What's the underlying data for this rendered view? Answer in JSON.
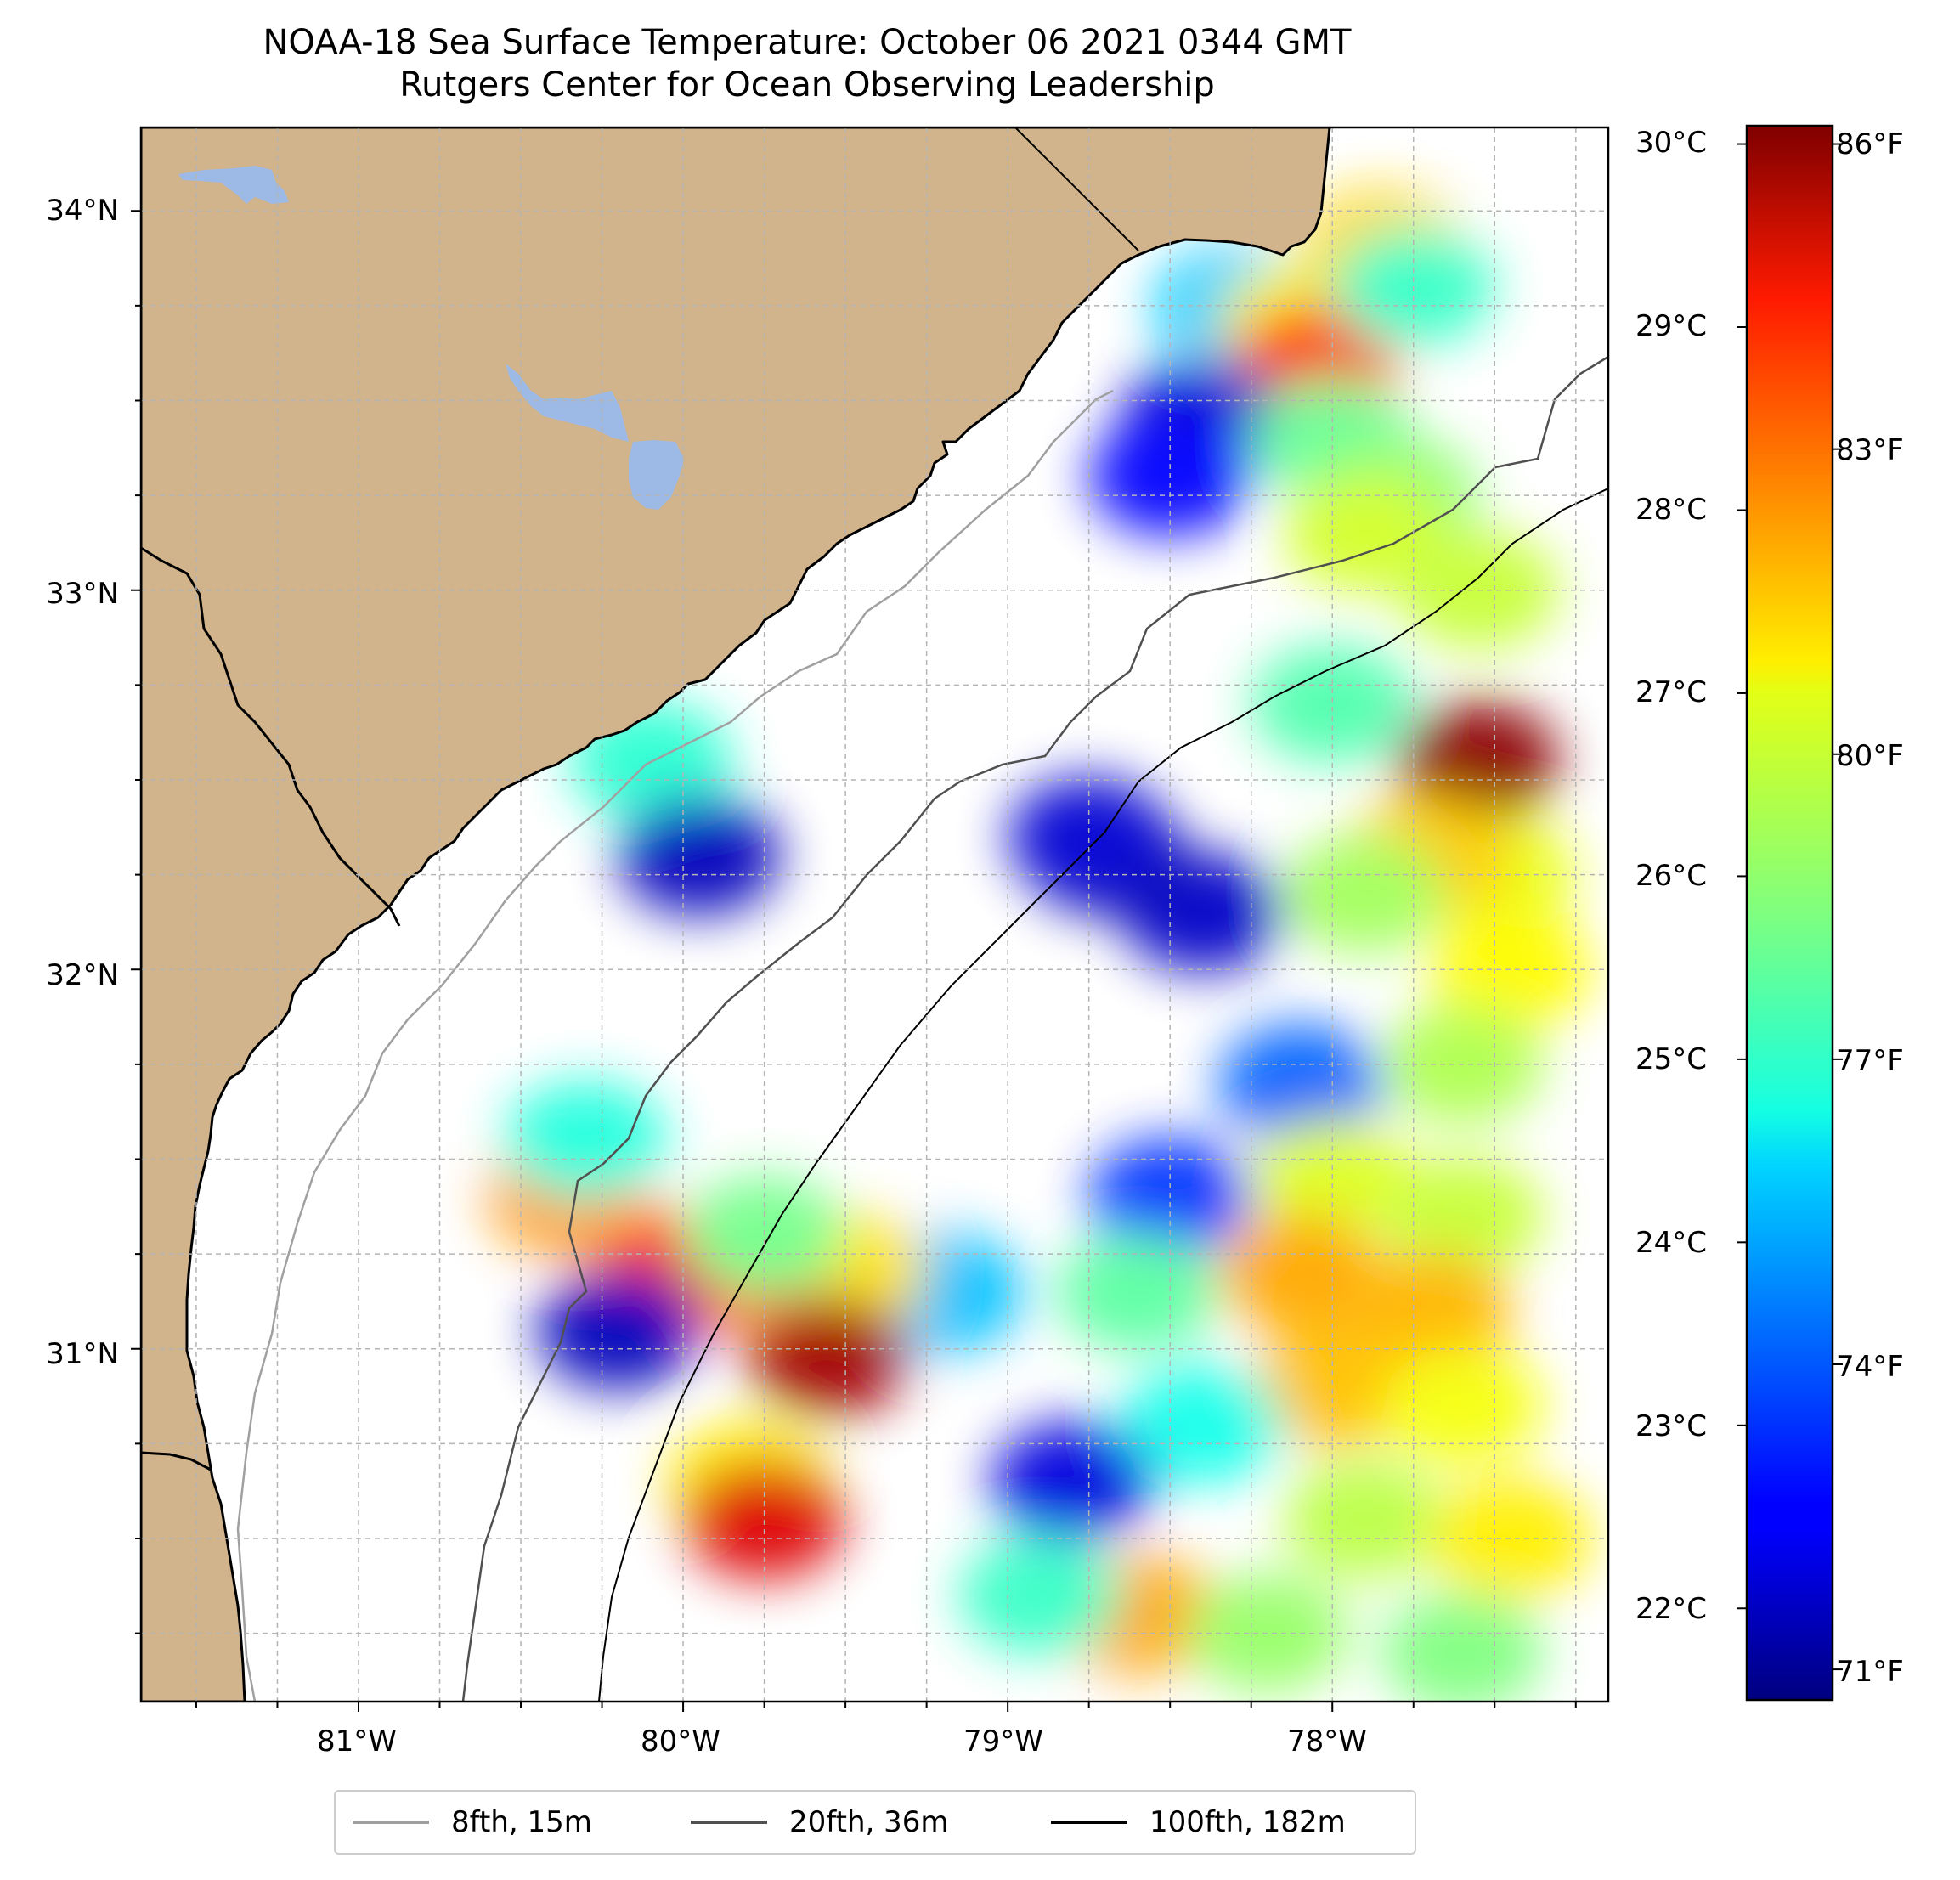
{
  "title": "NOAA-18 Sea Surface Temperature: October 06 2021 0344 GMT",
  "subtitle": "Rutgers Center for Ocean Observing Leadership",
  "map": {
    "lon_range": [
      -81.67,
      -77.15
    ],
    "lat_range": [
      30.07,
      34.22
    ],
    "lat_ticks": [
      {
        "value": 34,
        "label": "34°N"
      },
      {
        "value": 33,
        "label": "33°N"
      },
      {
        "value": 32,
        "label": "32°N"
      },
      {
        "value": 31,
        "label": "31°N"
      }
    ],
    "lon_ticks": [
      {
        "value": -81,
        "label": "81°W"
      },
      {
        "value": -80,
        "label": "80°W"
      },
      {
        "value": -79,
        "label": "79°W"
      },
      {
        "value": -78,
        "label": "78°W"
      }
    ],
    "grid": true,
    "land_color": "#D2B48C",
    "water_body_color": "#9DB9E5"
  },
  "colorbar": {
    "colormap": "jet",
    "range_c": [
      21.5,
      30.1
    ],
    "celsius_ticks": [
      {
        "value": 30,
        "label": "30°C"
      },
      {
        "value": 29,
        "label": "29°C"
      },
      {
        "value": 28,
        "label": "28°C"
      },
      {
        "value": 27,
        "label": "27°C"
      },
      {
        "value": 26,
        "label": "26°C"
      },
      {
        "value": 25,
        "label": "25°C"
      },
      {
        "value": 24,
        "label": "24°C"
      },
      {
        "value": 23,
        "label": "23°C"
      },
      {
        "value": 22,
        "label": "22°C"
      }
    ],
    "fahrenheit_ticks": [
      {
        "value": 86,
        "label": "86°F"
      },
      {
        "value": 83,
        "label": "83°F"
      },
      {
        "value": 80,
        "label": "80°F"
      },
      {
        "value": 77,
        "label": "77°F"
      },
      {
        "value": 74,
        "label": "74°F"
      },
      {
        "value": 71,
        "label": "71°F"
      }
    ]
  },
  "legend": {
    "items": [
      {
        "label": "8fth, 15m",
        "color": "#A0A0A0"
      },
      {
        "label": "20fth, 36m",
        "color": "#505050"
      },
      {
        "label": "100fth, 182m",
        "color": "#000000"
      }
    ]
  },
  "sst_patches": [
    {
      "lon": -78.3,
      "lat": 33.75,
      "c": 24.3
    },
    {
      "lon": -78.1,
      "lat": 33.7,
      "c": 26.8
    },
    {
      "lon": -78.05,
      "lat": 33.6,
      "c": 28.6
    },
    {
      "lon": -77.85,
      "lat": 33.9,
      "c": 27.2
    },
    {
      "lon": -77.75,
      "lat": 33.8,
      "c": 25.2
    },
    {
      "lon": -78.4,
      "lat": 33.45,
      "c": 22.2
    },
    {
      "lon": -78.0,
      "lat": 33.4,
      "c": 25.6
    },
    {
      "lon": -77.8,
      "lat": 33.25,
      "c": 25.9
    },
    {
      "lon": -78.5,
      "lat": 33.3,
      "c": 22.6
    },
    {
      "lon": -77.9,
      "lat": 33.15,
      "c": 26.5
    },
    {
      "lon": -77.55,
      "lat": 32.55,
      "c": 30.0
    },
    {
      "lon": -77.5,
      "lat": 32.25,
      "c": 26.7
    },
    {
      "lon": -77.7,
      "lat": 32.3,
      "c": 27.3
    },
    {
      "lon": -77.9,
      "lat": 32.2,
      "c": 26.1
    },
    {
      "lon": -77.45,
      "lat": 32.0,
      "c": 26.9
    },
    {
      "lon": -78.4,
      "lat": 32.15,
      "c": 22.1
    },
    {
      "lon": -78.7,
      "lat": 32.3,
      "c": 21.9
    },
    {
      "lon": -78.1,
      "lat": 31.7,
      "c": 23.4
    },
    {
      "lon": -77.6,
      "lat": 31.75,
      "c": 26.2
    },
    {
      "lon": -78.0,
      "lat": 31.45,
      "c": 26.6
    },
    {
      "lon": -78.5,
      "lat": 31.4,
      "c": 23.0
    },
    {
      "lon": -77.6,
      "lat": 31.35,
      "c": 26.4
    },
    {
      "lon": -78.1,
      "lat": 31.2,
      "c": 27.6
    },
    {
      "lon": -77.7,
      "lat": 31.1,
      "c": 27.5
    },
    {
      "lon": -78.6,
      "lat": 31.15,
      "c": 25.5
    },
    {
      "lon": -78.0,
      "lat": 30.9,
      "c": 27.4
    },
    {
      "lon": -77.6,
      "lat": 30.85,
      "c": 26.8
    },
    {
      "lon": -78.4,
      "lat": 30.8,
      "c": 24.9
    },
    {
      "lon": -78.8,
      "lat": 30.65,
      "c": 22.3
    },
    {
      "lon": -77.9,
      "lat": 30.55,
      "c": 26.3
    },
    {
      "lon": -77.45,
      "lat": 30.5,
      "c": 27.0
    },
    {
      "lon": -78.6,
      "lat": 30.3,
      "c": 27.6
    },
    {
      "lon": -78.2,
      "lat": 30.25,
      "c": 26.0
    },
    {
      "lon": -77.6,
      "lat": 30.2,
      "c": 25.8
    },
    {
      "lon": -78.9,
      "lat": 30.35,
      "c": 25.2
    },
    {
      "lon": -79.2,
      "lat": 31.15,
      "c": 24.2
    },
    {
      "lon": -79.5,
      "lat": 31.2,
      "c": 27.1
    },
    {
      "lon": -79.55,
      "lat": 30.98,
      "c": 29.8
    },
    {
      "lon": -79.85,
      "lat": 31.2,
      "c": 28.1
    },
    {
      "lon": -80.05,
      "lat": 31.2,
      "c": 28.8
    },
    {
      "lon": -80.2,
      "lat": 31.05,
      "c": 22.0
    },
    {
      "lon": -80.35,
      "lat": 31.4,
      "c": 27.7
    },
    {
      "lon": -80.3,
      "lat": 31.55,
      "c": 25.0
    },
    {
      "lon": -79.75,
      "lat": 31.3,
      "c": 25.7
    },
    {
      "lon": -79.8,
      "lat": 30.65,
      "c": 27.0
    },
    {
      "lon": -79.75,
      "lat": 30.55,
      "c": 29.3
    },
    {
      "lon": -80.1,
      "lat": 32.55,
      "c": 25.1
    },
    {
      "lon": -79.95,
      "lat": 32.3,
      "c": 22.0
    },
    {
      "lon": -78.75,
      "lat": 32.35,
      "c": 22.2
    },
    {
      "lon": -78.0,
      "lat": 32.7,
      "c": 25.4
    },
    {
      "lon": -77.55,
      "lat": 33.0,
      "c": 26.4
    }
  ]
}
